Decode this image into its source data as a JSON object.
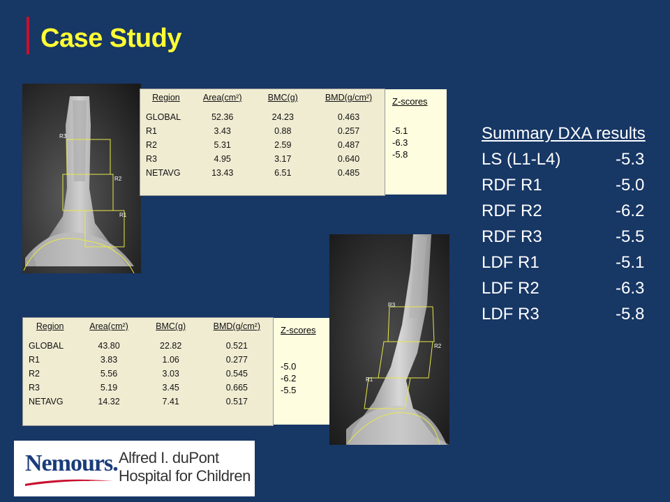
{
  "slide": {
    "title": "Case Study"
  },
  "xray_top": {
    "roi_labels": [
      "R3",
      "R2",
      "R1"
    ]
  },
  "xray_bottom": {
    "roi_labels": [
      "R3",
      "R2",
      "R1"
    ]
  },
  "table_top": {
    "headers": [
      "Region",
      "Area(cm²)",
      "BMC(g)",
      "BMD(g/cm²)"
    ],
    "rows": [
      [
        "GLOBAL",
        "52.36",
        "24.23",
        "0.463"
      ],
      [
        "R1",
        "3.43",
        "0.88",
        "0.257"
      ],
      [
        "R2",
        "5.31",
        "2.59",
        "0.487"
      ],
      [
        "R3",
        "4.95",
        "3.17",
        "0.640"
      ],
      [
        "NETAVG",
        "13.43",
        "6.51",
        "0.485"
      ]
    ],
    "z_header": "Z-scores",
    "z_values": [
      "-5.1",
      "-6.3",
      "-5.8"
    ]
  },
  "table_bottom": {
    "headers": [
      "Region",
      "Area(cm²)",
      "BMC(g)",
      "BMD(g/cm²)"
    ],
    "rows": [
      [
        "GLOBAL",
        "43.80",
        "22.82",
        "0.521"
      ],
      [
        "R1",
        "3.83",
        "1.06",
        "0.277"
      ],
      [
        "R2",
        "5.56",
        "3.03",
        "0.545"
      ],
      [
        "R3",
        "5.19",
        "3.45",
        "0.665"
      ],
      [
        "NETAVG",
        "14.32",
        "7.41",
        "0.517"
      ]
    ],
    "z_header": "Z-scores",
    "z_values": [
      "-5.0",
      "-6.2",
      "-5.5"
    ]
  },
  "summary": {
    "title": "Summary DXA results",
    "rows": [
      {
        "label": "LS (L1-L4)",
        "value": "-5.3"
      },
      {
        "label": "RDF R1",
        "value": "-5.0"
      },
      {
        "label": "RDF R2",
        "value": "-6.2"
      },
      {
        "label": "RDF R3",
        "value": "-5.5"
      },
      {
        "label": "LDF R1",
        "value": "-5.1"
      },
      {
        "label": "LDF R2",
        "value": "-6.3"
      },
      {
        "label": "LDF R3",
        "value": "-5.8"
      }
    ]
  },
  "logo": {
    "wordmark": "Nemours.",
    "hospital_line1": "Alfred I. duPont",
    "hospital_line2": "Hospital for Children"
  },
  "colors": {
    "background": "#173765",
    "title": "#ffff33",
    "accent": "#c8102e",
    "roi": "#e8e84a"
  }
}
